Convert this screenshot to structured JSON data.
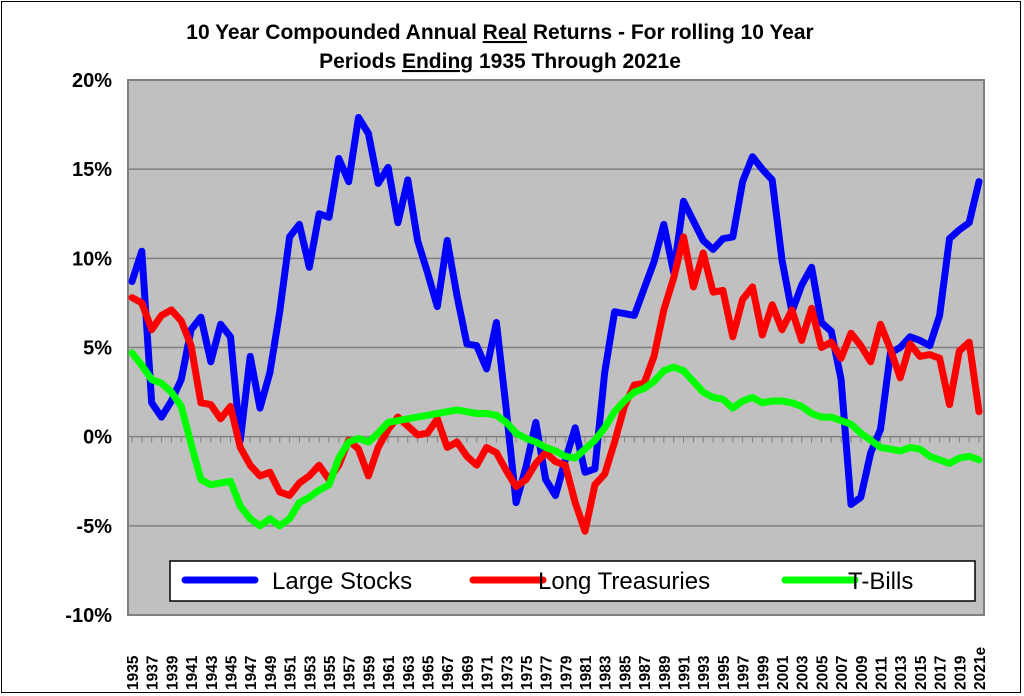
{
  "chart_data": {
    "type": "line",
    "title_lines": [
      [
        {
          "text": "10 Year Compounded Annual ",
          "u": false
        },
        {
          "text": "Real",
          "u": true
        },
        {
          "text": " Returns - For rolling 10 Year",
          "u": false
        }
      ],
      [
        {
          "text": "Periods ",
          "u": false
        },
        {
          "text": "Ending",
          "u": true
        },
        {
          "text": " 1935 Through 2021e",
          "u": false
        }
      ]
    ],
    "xlabel": "",
    "ylabel": "",
    "ylim": [
      -10,
      20
    ],
    "y_ticks": [
      20,
      15,
      10,
      5,
      0,
      -5,
      -10
    ],
    "y_tick_labels": [
      "20%",
      "15%",
      "10%",
      "5%",
      "0%",
      "-5%",
      "-10%"
    ],
    "x": [
      1935,
      1936,
      1937,
      1938,
      1939,
      1940,
      1941,
      1942,
      1943,
      1944,
      1945,
      1946,
      1947,
      1948,
      1949,
      1950,
      1951,
      1952,
      1953,
      1954,
      1955,
      1956,
      1957,
      1958,
      1959,
      1960,
      1961,
      1962,
      1963,
      1964,
      1965,
      1966,
      1967,
      1968,
      1969,
      1970,
      1971,
      1972,
      1973,
      1974,
      1975,
      1976,
      1977,
      1978,
      1979,
      1980,
      1981,
      1982,
      1983,
      1984,
      1985,
      1986,
      1987,
      1988,
      1989,
      1990,
      1991,
      1992,
      1993,
      1994,
      1995,
      1996,
      1997,
      1998,
      1999,
      2000,
      2001,
      2002,
      2003,
      2004,
      2005,
      2006,
      2007,
      2008,
      2009,
      2010,
      2011,
      2012,
      2013,
      2014,
      2015,
      2016,
      2017,
      2018,
      2019,
      2020,
      2021
    ],
    "x_tick_labels": [
      "1935",
      "1937",
      "1939",
      "1941",
      "1943",
      "1945",
      "1947",
      "1949",
      "1951",
      "1953",
      "1955",
      "1957",
      "1959",
      "1961",
      "1963",
      "1965",
      "1967",
      "1969",
      "1971",
      "1973",
      "1975",
      "1977",
      "1979",
      "1981",
      "1983",
      "1985",
      "1987",
      "1989",
      "1991",
      "1993",
      "1995",
      "1997",
      "1999",
      "2001",
      "2003",
      "2005",
      "2007",
      "2009",
      "2011",
      "2013",
      "2015",
      "2017",
      "2019",
      "2021e"
    ],
    "grid": true,
    "legend_position": "bottom",
    "plot_background": "#c0c0c0",
    "series": [
      {
        "name": "Large Stocks",
        "color": "#0000ff",
        "values": [
          8.7,
          10.4,
          1.9,
          1.1,
          2.0,
          3.2,
          6.0,
          6.7,
          4.2,
          6.3,
          5.6,
          -0.2,
          4.5,
          1.6,
          3.6,
          7.0,
          11.2,
          11.9,
          9.5,
          12.5,
          12.3,
          15.6,
          14.3,
          17.9,
          17.0,
          14.2,
          15.1,
          12.0,
          14.4,
          11.0,
          9.2,
          7.3,
          11.0,
          7.9,
          5.2,
          5.1,
          3.8,
          6.4,
          1.5,
          -3.7,
          -1.7,
          0.8,
          -2.4,
          -3.3,
          -1.3,
          0.5,
          -2.0,
          -1.8,
          3.6,
          7.0,
          6.9,
          6.8,
          8.3,
          9.8,
          11.9,
          9.2,
          13.2,
          12.1,
          11.0,
          10.5,
          11.1,
          11.2,
          14.3,
          15.7,
          15.0,
          14.4,
          9.9,
          7.0,
          8.5,
          9.5,
          6.4,
          5.9,
          3.2,
          -3.8,
          -3.4,
          -0.9,
          0.4,
          4.7,
          5.0,
          5.6,
          5.4,
          5.1,
          6.8,
          11.1,
          11.6,
          12.0,
          14.3
        ]
      },
      {
        "name": "Long Treasuries",
        "color": "#ff0000",
        "values": [
          7.8,
          7.5,
          6.0,
          6.8,
          7.1,
          6.5,
          5.1,
          1.9,
          1.8,
          1.0,
          1.7,
          -0.6,
          -1.6,
          -2.2,
          -2.0,
          -3.1,
          -3.3,
          -2.6,
          -2.2,
          -1.6,
          -2.4,
          -1.6,
          -0.2,
          -0.7,
          -2.2,
          -0.6,
          0.4,
          1.1,
          0.6,
          0.1,
          0.2,
          1.0,
          -0.6,
          -0.3,
          -1.1,
          -1.6,
          -0.6,
          -0.9,
          -1.9,
          -2.8,
          -2.4,
          -1.5,
          -0.9,
          -1.4,
          -1.6,
          -3.7,
          -5.3,
          -2.7,
          -2.1,
          -0.3,
          1.7,
          2.9,
          3.0,
          4.5,
          7.1,
          8.9,
          11.2,
          8.4,
          10.3,
          8.1,
          8.2,
          5.6,
          7.7,
          8.4,
          5.7,
          7.4,
          6.0,
          7.1,
          5.4,
          7.2,
          5.0,
          5.3,
          4.4,
          5.8,
          5.1,
          4.2,
          6.3,
          4.9,
          3.3,
          5.2,
          4.5,
          4.6,
          4.4,
          1.8,
          4.8,
          5.3,
          1.4
        ]
      },
      {
        "name": "T-Bills",
        "color": "#00ff00",
        "values": [
          4.7,
          4.0,
          3.2,
          3.0,
          2.5,
          1.7,
          -0.4,
          -2.4,
          -2.7,
          -2.6,
          -2.5,
          -3.9,
          -4.6,
          -5.0,
          -4.6,
          -5.0,
          -4.6,
          -3.7,
          -3.4,
          -3.0,
          -2.7,
          -1.2,
          -0.3,
          -0.1,
          -0.3,
          0.2,
          0.8,
          0.9,
          1.0,
          1.1,
          1.2,
          1.3,
          1.4,
          1.5,
          1.4,
          1.3,
          1.3,
          1.2,
          0.8,
          0.2,
          -0.1,
          -0.3,
          -0.6,
          -0.8,
          -1.1,
          -1.2,
          -0.7,
          -0.2,
          0.5,
          1.4,
          2.0,
          2.5,
          2.7,
          3.1,
          3.7,
          3.9,
          3.7,
          3.1,
          2.5,
          2.2,
          2.1,
          1.6,
          2.0,
          2.2,
          1.9,
          2.0,
          2.0,
          1.9,
          1.7,
          1.3,
          1.1,
          1.1,
          0.9,
          0.7,
          0.2,
          -0.2,
          -0.6,
          -0.7,
          -0.8,
          -0.6,
          -0.7,
          -1.1,
          -1.3,
          -1.5,
          -1.2,
          -1.1,
          -1.3
        ]
      }
    ]
  }
}
